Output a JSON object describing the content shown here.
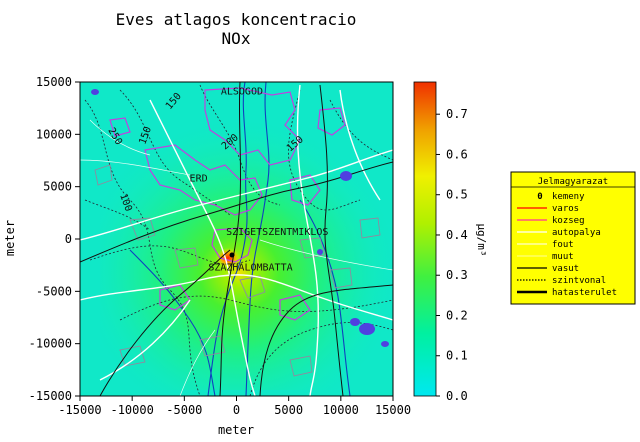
{
  "title": "Eves atlagos koncentracio",
  "subtitle": "NOx",
  "axes": {
    "x": {
      "label": "meter",
      "ticks": [
        "-15000",
        "-10000",
        "-5000",
        "0",
        "5000",
        "10000",
        "15000"
      ]
    },
    "y": {
      "label": "meter",
      "ticks": [
        "15000",
        "10000",
        "5000",
        "0",
        "-5000",
        "-10000",
        "-15000"
      ]
    }
  },
  "colorbar": {
    "unit": "μg/m³",
    "ticks": [
      "0.7",
      "0.6",
      "0.5",
      "0.4",
      "0.3",
      "0.2",
      "0.1",
      "0.0"
    ],
    "min": 0.0,
    "max": 0.78,
    "colors": [
      "#00e8f0",
      "#00f0a0",
      "#40f040",
      "#b0f000",
      "#f0f000",
      "#f0a000",
      "#f03000"
    ]
  },
  "places": [
    {
      "name": "ALSOGOD",
      "x": -1500,
      "y": 13800
    },
    {
      "name": "ERD",
      "x": -4500,
      "y": 5500
    },
    {
      "name": "SZIGETSZENTMIKLOS",
      "x": -1000,
      "y": 400
    },
    {
      "name": "SZAZHALOMBATTA",
      "x": -2700,
      "y": -3000
    }
  ],
  "contour_labels": [
    "250",
    "150",
    "200",
    "150",
    "100",
    "150"
  ],
  "legend": {
    "title": "Jelmagyarazat",
    "items": [
      {
        "label": "kemeny",
        "color": "#000000",
        "style": "marker"
      },
      {
        "label": "varos",
        "color": "#ff0000",
        "style": "solid"
      },
      {
        "label": "kozseg",
        "color": "#ff3399",
        "style": "solid"
      },
      {
        "label": "autopalya",
        "color": "#ffffff",
        "style": "solid"
      },
      {
        "label": "fout",
        "color": "#ffffff",
        "style": "thin"
      },
      {
        "label": "muut",
        "color": "#ffffff",
        "style": "faint"
      },
      {
        "label": "vasut",
        "color": "#000000",
        "style": "solid"
      },
      {
        "label": "szintvonal",
        "color": "#000000",
        "style": "dotted"
      },
      {
        "label": "hatasterulet",
        "color": "#000000",
        "style": "thick"
      }
    ]
  }
}
